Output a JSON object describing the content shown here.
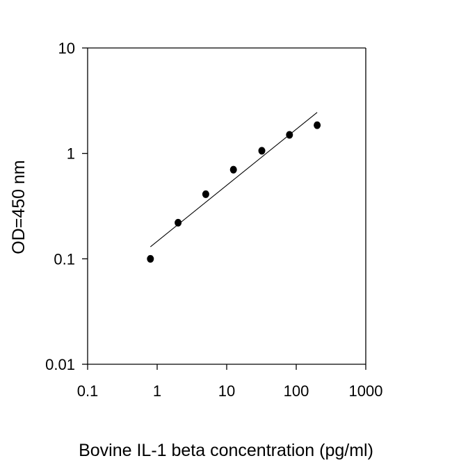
{
  "chart_data": {
    "type": "scatter",
    "xlabel": "Bovine IL-1 beta concentration (pg/ml)",
    "ylabel": "OD=450 nm",
    "x_scale": "log",
    "y_scale": "log",
    "xlim": [
      0.1,
      1000
    ],
    "ylim": [
      0.01,
      10
    ],
    "x_ticks": [
      0.1,
      1,
      10,
      100,
      1000
    ],
    "x_tick_labels": [
      "0.1",
      "1",
      "10",
      "100",
      "1000"
    ],
    "y_ticks": [
      0.01,
      0.1,
      1,
      10
    ],
    "y_tick_labels": [
      "0.01",
      "0.1",
      "1",
      "10"
    ],
    "grid": false,
    "legend": "none",
    "series": [
      {
        "type": "scatter",
        "x": [
          0.8,
          2,
          5,
          12.5,
          32,
          80,
          200
        ],
        "y": [
          0.1,
          0.22,
          0.41,
          0.7,
          1.06,
          1.5,
          1.85
        ]
      },
      {
        "type": "line",
        "x": [
          0.8,
          200
        ],
        "y": [
          0.13,
          2.45
        ]
      }
    ],
    "colors": {
      "marker": "#000000",
      "line": "#000000",
      "axis": "#000000",
      "background": "#ffffff"
    }
  }
}
